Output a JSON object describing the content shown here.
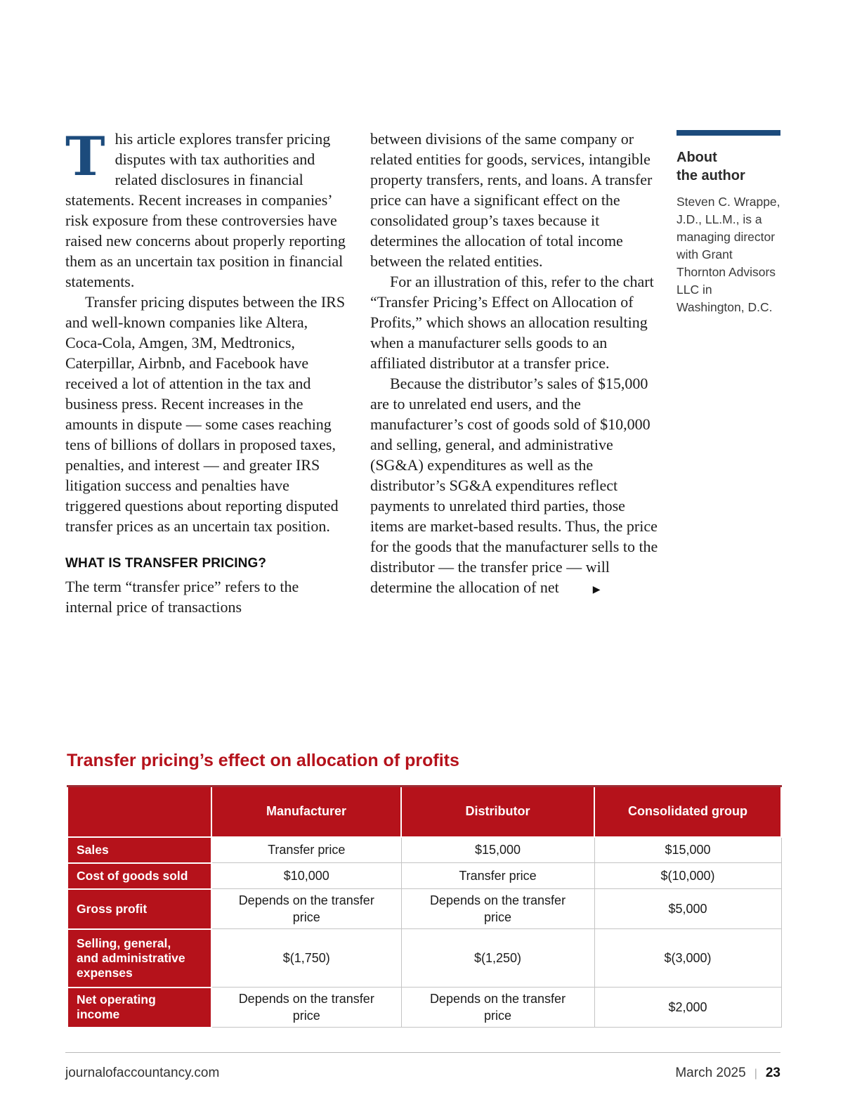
{
  "article": {
    "col1": {
      "drop_cap": "T",
      "para1_rest": "his article explores transfer pricing disputes with tax authorities and related disclosures in financial statements. Recent increases in companies’ risk exposure from these controversies have raised new concerns about properly reporting them as an uncertain tax position in financial statements.",
      "para2": "Transfer pricing disputes between the IRS and well-known companies like Altera, Coca-Cola, Amgen, 3M, Medtronics, Caterpillar, Airbnb, and Facebook have received a lot of attention in the tax and business press. Recent increases in the amounts in dispute — some cases reaching tens of billions of dollars in proposed taxes, penalties, and interest — and greater IRS litigation success and penalties have triggered questions about reporting disputed transfer prices as an uncertain tax position.",
      "heading": "WHAT IS TRANSFER PRICING?",
      "para3": "The term “transfer price” refers to the internal price of transactions"
    },
    "col2": {
      "para1": "between divisions of the same company or related entities for goods, services, intangible property transfers, rents, and loans. A transfer price can have a significant effect on the consolidated group’s taxes because it determines the allocation of total income between the related entities.",
      "para2": "For an illustration of this, refer to the chart “Transfer Pricing’s Effect on Allocation of Profits,” which shows an allocation resulting when a manufacturer sells goods to an affiliated distributor at a transfer price.",
      "para3": "Because the distributor’s sales of $15,000 are to unrelated end users, and the manufacturer’s cost of goods sold of $10,000 and selling, general, and administrative (SG&A) expenditures as well as the distributor’s SG&A expenditures reflect payments to unrelated third parties, those items are market-based results. Thus, the price for the goods that the manufacturer sells to the distributor — the transfer price — will determine the allocation of net",
      "continuation_marker": "▶"
    },
    "sidebar": {
      "heading": "About\nthe author",
      "bio": "Steven C. Wrappe, J.D., LL.M., is a managing director with Grant Thornton Advisors LLC in Washington, D.C."
    }
  },
  "exhibit": {
    "title": "Transfer pricing’s effect on allocation of profits",
    "table": {
      "col_headers": [
        "",
        "Manufacturer",
        "Distributor",
        "Consolidated group"
      ],
      "rows": [
        {
          "label": "Sales",
          "cells": [
            "Transfer price",
            "$15,000",
            "$15,000"
          ]
        },
        {
          "label": "Cost of goods sold",
          "cells": [
            "$10,000",
            "Transfer price",
            "$(10,000)"
          ]
        },
        {
          "label": "Gross profit",
          "cells": [
            "Depends on the transfer price",
            "Depends on the transfer price",
            "$5,000"
          ]
        },
        {
          "label": "Selling, general, and administrative expenses",
          "cells": [
            "$(1,750)",
            "$(1,250)",
            "$(3,000)"
          ]
        },
        {
          "label": "Net operating income",
          "cells": [
            "Depends on the transfer price",
            "Depends on the transfer price",
            "$2,000"
          ]
        }
      ]
    }
  },
  "footer": {
    "site": "journalofaccountancy.com",
    "issue": "March 2025",
    "separator": "|",
    "page_number": "23"
  },
  "colors": {
    "accent_red": "#b5121b",
    "accent_navy": "#1c4b7c"
  }
}
